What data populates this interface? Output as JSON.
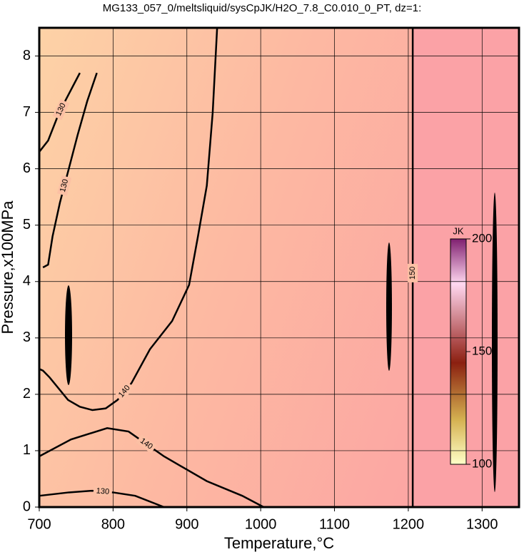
{
  "chart_data": {
    "type": "contour",
    "title": "MG133_057_0/meltsliquid/sysCpJK/H2O_7.8_C0.010_0_PT, dz=1:",
    "xlabel": "Temperature,°C",
    "ylabel": "Pressure,x100MPa",
    "xlim": [
      700,
      1350
    ],
    "ylim": [
      0,
      8.5
    ],
    "xticks": [
      700,
      800,
      900,
      1000,
      1100,
      1200,
      1300
    ],
    "yticks": [
      0,
      1,
      2,
      3,
      4,
      5,
      6,
      7,
      8
    ],
    "grid": true,
    "contours": [
      {
        "level": 130,
        "x": [
          705,
          712,
          718,
          728,
          740,
          752,
          765,
          778
        ],
        "y": [
          4.25,
          4.3,
          4.8,
          5.4,
          6.0,
          6.6,
          7.2,
          7.7
        ]
      },
      {
        "level": 130,
        "x": [
          700,
          712,
          724,
          735,
          745,
          755
        ],
        "y": [
          6.3,
          6.5,
          6.9,
          7.2,
          7.45,
          7.7
        ]
      },
      {
        "level": 140,
        "x": [
          941,
          935,
          927,
          915,
          903,
          880,
          850,
          825,
          806,
          790,
          772,
          755,
          739,
          714,
          705,
          700
        ],
        "y": [
          8.5,
          7.0,
          5.7,
          4.8,
          3.94,
          3.3,
          2.8,
          2.2,
          1.9,
          1.75,
          1.72,
          1.78,
          1.9,
          2.3,
          2.42,
          2.45
        ]
      },
      {
        "level": 140,
        "x": [
          700,
          743,
          792,
          821,
          869,
          927,
          975,
          1004
        ],
        "y": [
          0.9,
          1.2,
          1.4,
          1.34,
          0.9,
          0.46,
          0.2,
          0
        ]
      },
      {
        "level": 130,
        "x": [
          700,
          740,
          772,
          800,
          830,
          869
        ],
        "y": [
          0.2,
          0.26,
          0.29,
          0.26,
          0.2,
          0
        ]
      },
      {
        "level": 150,
        "x": [
          1206,
          1206,
          1206,
          1206
        ],
        "y": [
          0,
          2.8,
          5.5,
          8.5
        ]
      }
    ],
    "colorbar": {
      "label": "JK",
      "lim": [
        100,
        200
      ],
      "ticks": [
        100,
        150,
        200
      ]
    }
  }
}
